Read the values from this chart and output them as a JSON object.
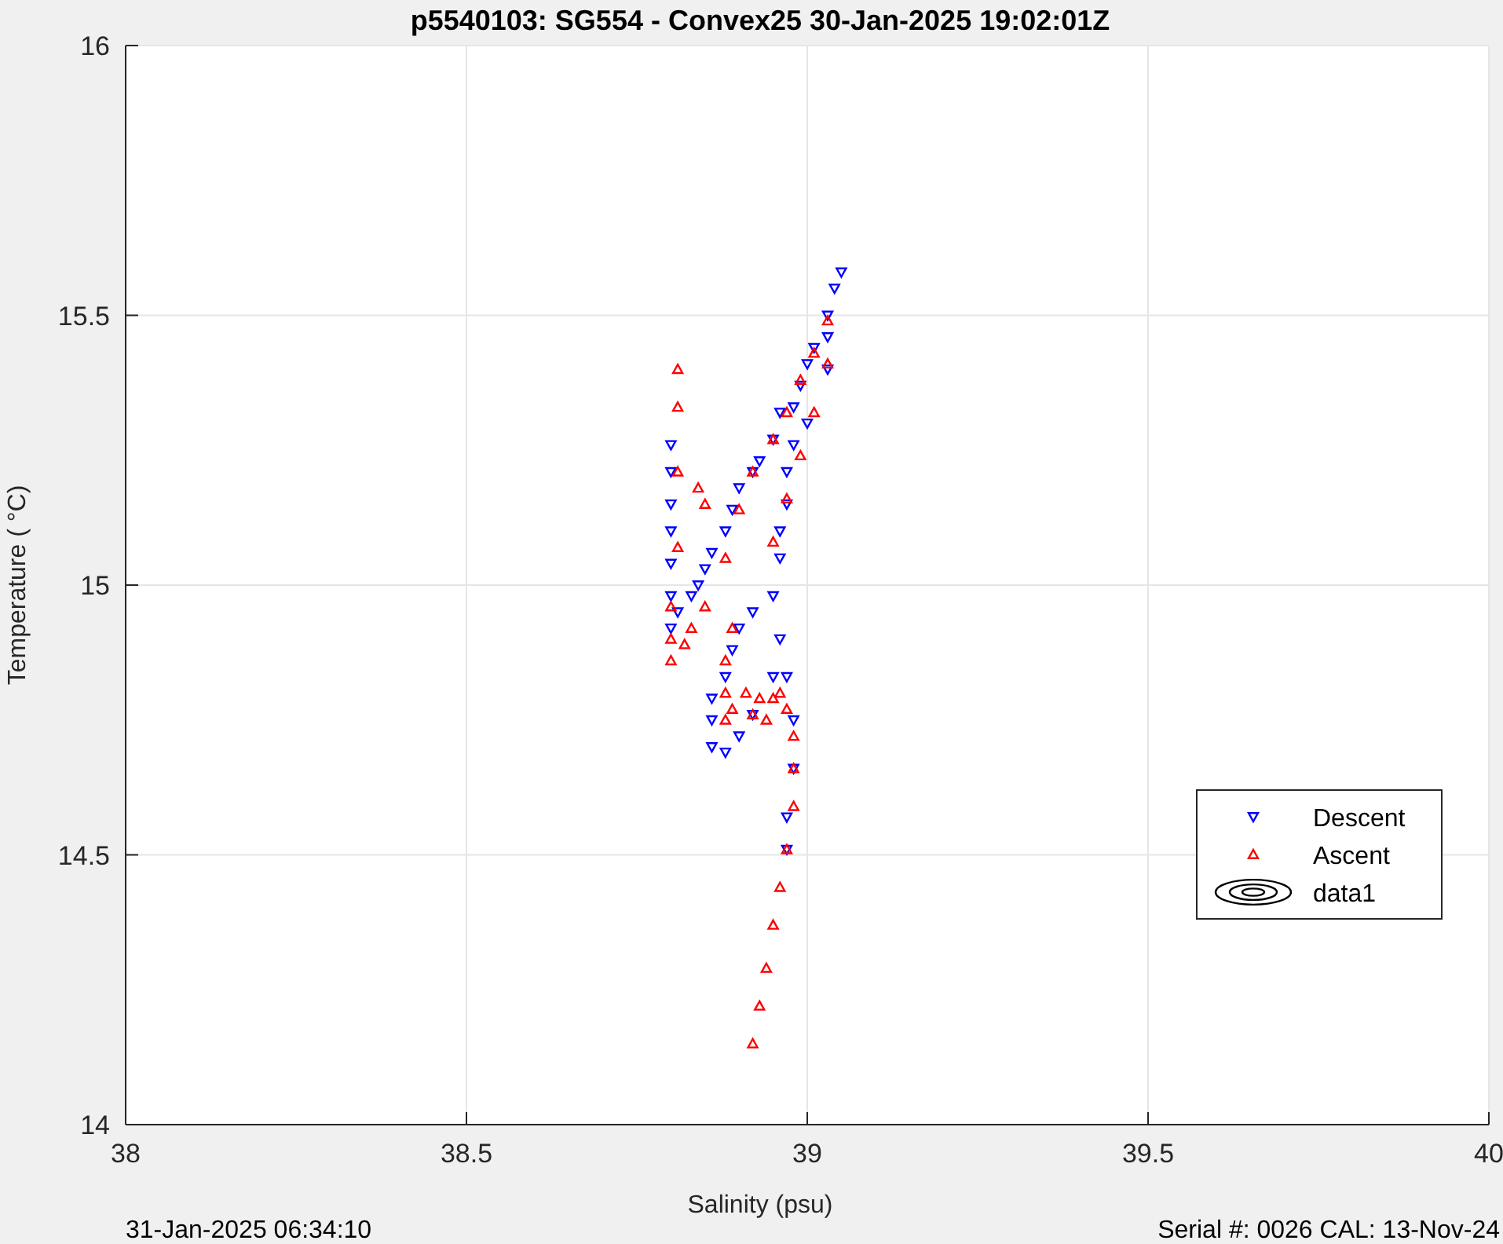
{
  "chart_data": {
    "type": "scatter",
    "title": "p5540103: SG554 - Convex25 30-Jan-2025 19:02:01Z",
    "xlabel": "Salinity (psu)",
    "ylabel": "Temperature (   °C)",
    "xlim": [
      38,
      40
    ],
    "xticks": [
      38,
      38.5,
      39,
      39.5,
      40
    ],
    "ylim": [
      14,
      16
    ],
    "yticks": [
      14,
      14.5,
      15,
      15.5,
      16
    ],
    "grid": true,
    "legend": "right",
    "annotations": [
      "31-Jan-2025 06:34:10",
      "Serial #: 0026 CAL: 13-Nov-24"
    ],
    "series": [
      {
        "name": "Descent",
        "color": "#0000ff",
        "marker": "triangle-down",
        "x": [
          39.05,
          39.04,
          39.03,
          39.03,
          39.01,
          39.0,
          38.99,
          38.98,
          38.96,
          38.95,
          38.93,
          38.92,
          38.9,
          38.89,
          38.88,
          38.86,
          38.85,
          38.84,
          38.83,
          38.81,
          38.8,
          38.8,
          38.8,
          38.8,
          38.8,
          38.8,
          38.8,
          39.03,
          39.0,
          38.98,
          38.97,
          38.97,
          38.96,
          38.96,
          38.95,
          38.92,
          38.9,
          38.89,
          38.88,
          38.86,
          38.86,
          38.86,
          38.88,
          38.9,
          38.92,
          38.95,
          38.96,
          38.97,
          38.98,
          38.98,
          38.97,
          38.97
        ],
        "values": [
          15.58,
          15.55,
          15.5,
          15.46,
          15.44,
          15.41,
          15.37,
          15.33,
          15.32,
          15.27,
          15.23,
          15.21,
          15.18,
          15.14,
          15.1,
          15.06,
          15.03,
          15.0,
          14.98,
          14.95,
          14.92,
          14.98,
          15.04,
          15.1,
          15.15,
          15.21,
          15.26,
          15.4,
          15.3,
          15.26,
          15.21,
          15.15,
          15.1,
          15.05,
          14.98,
          14.95,
          14.92,
          14.88,
          14.83,
          14.79,
          14.75,
          14.7,
          14.69,
          14.72,
          14.76,
          14.83,
          14.9,
          14.83,
          14.75,
          14.66,
          14.57,
          14.51
        ]
      },
      {
        "name": "Ascent",
        "color": "#ff0000",
        "marker": "triangle",
        "x": [
          38.92,
          38.93,
          38.94,
          38.95,
          38.96,
          38.97,
          38.98,
          38.98,
          38.98,
          38.97,
          38.96,
          38.95,
          38.94,
          38.93,
          38.92,
          38.91,
          38.89,
          38.88,
          38.88,
          38.88,
          38.89,
          38.81,
          38.81,
          38.81,
          38.81,
          38.8,
          38.8,
          38.8,
          38.82,
          38.83,
          38.84,
          38.85,
          38.85,
          38.88,
          38.9,
          38.92,
          38.95,
          38.97,
          38.99,
          39.01,
          39.03,
          38.95,
          38.97,
          38.99,
          39.01,
          39.03
        ],
        "values": [
          14.15,
          14.22,
          14.29,
          14.37,
          14.44,
          14.51,
          14.59,
          14.66,
          14.72,
          14.77,
          14.8,
          14.79,
          14.75,
          14.79,
          14.76,
          14.8,
          14.77,
          14.75,
          14.8,
          14.86,
          14.92,
          15.4,
          15.33,
          15.21,
          15.07,
          14.96,
          14.9,
          14.86,
          14.89,
          14.92,
          15.18,
          15.15,
          14.96,
          15.05,
          15.14,
          15.21,
          15.27,
          15.32,
          15.38,
          15.43,
          15.49,
          15.08,
          15.16,
          15.24,
          15.32,
          15.41
        ]
      },
      {
        "name": "data1",
        "type": "other",
        "color": "#000000"
      }
    ]
  }
}
